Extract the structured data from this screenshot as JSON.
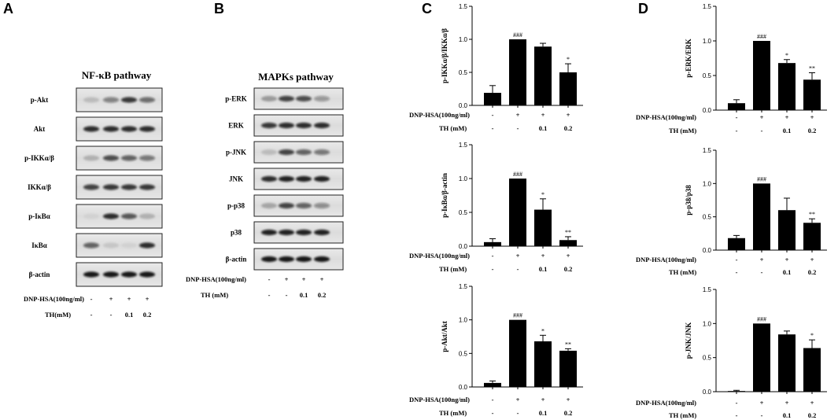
{
  "panels": {
    "A": {
      "letter": "A",
      "title": "NF-κB pathway",
      "rows": [
        "p-Akt",
        "Akt",
        "p-IKKα/β",
        "IKKα/β",
        "p-IκBα",
        "IκBα",
        "β-actin"
      ],
      "dnp_label": "DNP-HSA(100ng/ml)",
      "dnp_values": [
        "-",
        "+",
        "+",
        "+"
      ],
      "th_label": "TH(mM)",
      "th_values": [
        "-",
        "-",
        "0.1",
        "0.2"
      ]
    },
    "B": {
      "letter": "B",
      "title": "MAPKs pathway",
      "rows": [
        "p-ERK",
        "ERK",
        "p-JNK",
        "JNK",
        "p-p38",
        "p38",
        "β-actin"
      ],
      "dnp_label": "DNP-HSA(100ng/ml)",
      "dnp_values": [
        "-",
        "+",
        "+",
        "+"
      ],
      "th_label": "TH  (mM)",
      "th_values": [
        "-",
        "-",
        "0.1",
        "0.2"
      ]
    },
    "C": {
      "letter": "C"
    },
    "D": {
      "letter": "D"
    }
  },
  "chart_data": [
    {
      "id": "c1",
      "type": "bar",
      "ylabel": "p-IKKα/β/IKKα/β",
      "ylim": [
        0,
        1.5
      ],
      "yticks": [
        "0.0",
        "0.5",
        "1.0",
        "1.5"
      ],
      "yvals": [
        0,
        0.5,
        1.0,
        1.5
      ],
      "values": [
        0.19,
        1.0,
        0.89,
        0.5
      ],
      "errors": [
        0.11,
        0.0,
        0.05,
        0.13
      ],
      "annotations": [
        "",
        "###",
        "",
        "*"
      ],
      "dnp_label": "DNP-HSA(100ng/ml)",
      "dnp_values": [
        "-",
        "+",
        "+",
        "+"
      ],
      "th_label": "TH  (mM)",
      "th_values": [
        "-",
        "-",
        "0.1",
        "0.2"
      ]
    },
    {
      "id": "c2",
      "type": "bar",
      "ylabel": "p-IκBα/β-actin",
      "ylim": [
        0,
        1.5
      ],
      "yticks": [
        "0.0",
        "0.5",
        "1.0",
        "1.5"
      ],
      "yvals": [
        0,
        0.5,
        1.0,
        1.5
      ],
      "values": [
        0.06,
        1.0,
        0.54,
        0.09
      ],
      "errors": [
        0.05,
        0.0,
        0.16,
        0.05
      ],
      "annotations": [
        "",
        "###",
        "*",
        "**"
      ],
      "dnp_label": "DNP-HSA(100ng/ml)",
      "dnp_values": [
        "-",
        "+",
        "+",
        "+"
      ],
      "th_label": "TH  (mM)",
      "th_values": [
        "-",
        "-",
        "0.1",
        "0.2"
      ]
    },
    {
      "id": "c3",
      "type": "bar",
      "ylabel": "p-Akt/Akt",
      "ylim": [
        0,
        1.5
      ],
      "yticks": [
        "0.0",
        "0.5",
        "1.0",
        "1.5"
      ],
      "yvals": [
        0,
        0.5,
        1.0,
        1.5
      ],
      "values": [
        0.06,
        1.0,
        0.68,
        0.54
      ],
      "errors": [
        0.03,
        0.0,
        0.09,
        0.03
      ],
      "annotations": [
        "",
        "###",
        "*",
        "**"
      ],
      "dnp_label": "DNP-HSA(100ng/ml)",
      "dnp_values": [
        "-",
        "+",
        "+",
        "+"
      ],
      "th_label": "TH  (mM)",
      "th_values": [
        "-",
        "-",
        "0.1",
        "0.2"
      ]
    },
    {
      "id": "d1",
      "type": "bar",
      "ylabel": "p-ERK/ERK",
      "ylim": [
        0,
        1.5
      ],
      "yticks": [
        "0.0",
        "0.5",
        "1.0",
        "1.5"
      ],
      "yvals": [
        0,
        0.5,
        1.0,
        1.5
      ],
      "values": [
        0.1,
        1.0,
        0.68,
        0.44
      ],
      "errors": [
        0.05,
        0.0,
        0.05,
        0.1
      ],
      "annotations": [
        "",
        "###",
        "*",
        "**"
      ],
      "dnp_label": "DNP-HSA(100ng/ml)",
      "dnp_values": [
        "-",
        "+",
        "+",
        "+"
      ],
      "th_label": "TH  (mM)",
      "th_values": [
        "-",
        "-",
        "0.1",
        "0.2"
      ]
    },
    {
      "id": "d2",
      "type": "bar",
      "ylabel": "p-p38/p38",
      "ylim": [
        0,
        1.5
      ],
      "yticks": [
        "0.0",
        "0.5",
        "1.0",
        "1.5"
      ],
      "yvals": [
        0,
        0.5,
        1.0,
        1.5
      ],
      "values": [
        0.18,
        1.0,
        0.6,
        0.41
      ],
      "errors": [
        0.04,
        0.0,
        0.18,
        0.06
      ],
      "annotations": [
        "",
        "###",
        "",
        "**"
      ],
      "dnp_label": "DNP-HSA(100ng/ml)",
      "dnp_values": [
        "-",
        "+",
        "+",
        "+"
      ],
      "th_label": "TH  (mM)",
      "th_values": [
        "-",
        "-",
        "0.1",
        "0.2"
      ]
    },
    {
      "id": "d3",
      "type": "bar",
      "ylabel": "p-JNK/JNK",
      "ylim": [
        0,
        1.5
      ],
      "yticks": [
        "0.0",
        "0.5",
        "1.0",
        "1.5"
      ],
      "yvals": [
        0,
        0.5,
        1.0,
        1.5
      ],
      "values": [
        0.01,
        1.0,
        0.84,
        0.64
      ],
      "errors": [
        0.01,
        0.0,
        0.05,
        0.12
      ],
      "annotations": [
        "",
        "###",
        "",
        "*"
      ],
      "dnp_label": "DNP-HSA(100ng/ml)",
      "dnp_values": [
        "-",
        "+",
        "+",
        "+"
      ],
      "th_label": "TH  (mM)",
      "th_values": [
        "-",
        "-",
        "0.1",
        "0.2"
      ]
    }
  ]
}
